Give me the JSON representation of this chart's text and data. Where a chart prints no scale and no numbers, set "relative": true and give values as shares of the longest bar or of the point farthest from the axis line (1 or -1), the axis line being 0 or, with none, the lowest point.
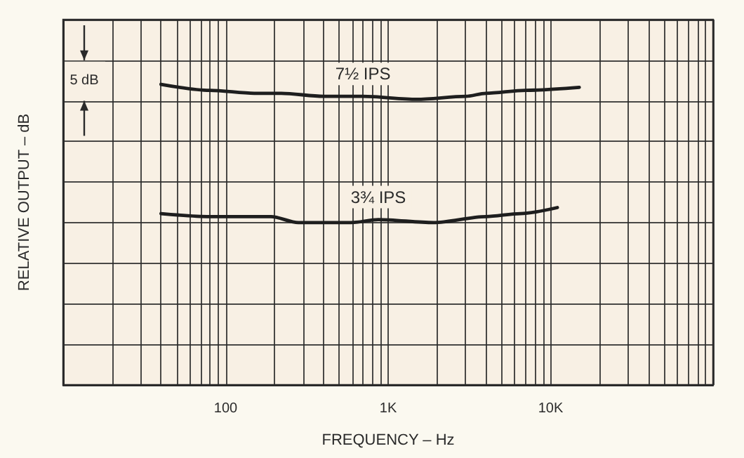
{
  "chart_data": {
    "type": "line",
    "relative": true,
    "xlabel": "FREQUENCY – Hz",
    "ylabel": "RELATIVE OUTPUT – dB",
    "log": "x",
    "grid": true,
    "legend": false,
    "tick_labels": "x",
    "marker": "none",
    "line_style": "solid",
    "xlim": [
      10,
      100000
    ],
    "xticks": [
      {
        "value": 10,
        "label": null
      },
      {
        "value": 20,
        "label": null
      },
      {
        "value": 30,
        "label": null
      },
      {
        "value": 40,
        "label": null
      },
      {
        "value": 50,
        "label": null
      },
      {
        "value": 60,
        "label": null
      },
      {
        "value": 70,
        "label": null
      },
      {
        "value": 80,
        "label": null
      },
      {
        "value": 90,
        "label": null
      },
      {
        "value": 100,
        "label": "100"
      },
      {
        "value": 200,
        "label": null
      },
      {
        "value": 300,
        "label": null
      },
      {
        "value": 400,
        "label": null
      },
      {
        "value": 500,
        "label": null
      },
      {
        "value": 600,
        "label": null
      },
      {
        "value": 700,
        "label": null
      },
      {
        "value": 800,
        "label": null
      },
      {
        "value": 900,
        "label": null
      },
      {
        "value": 1000,
        "label": "1K"
      },
      {
        "value": 2000,
        "label": null
      },
      {
        "value": 3000,
        "label": null
      },
      {
        "value": 4000,
        "label": null
      },
      {
        "value": 5000,
        "label": null
      },
      {
        "value": 6000,
        "label": null
      },
      {
        "value": 7000,
        "label": null
      },
      {
        "value": 8000,
        "label": null
      },
      {
        "value": 9000,
        "label": null
      },
      {
        "value": 10000,
        "label": "10K"
      },
      {
        "value": 20000,
        "label": null
      },
      {
        "value": 30000,
        "label": null
      },
      {
        "value": 40000,
        "label": null
      },
      {
        "value": 50000,
        "label": null
      },
      {
        "value": 60000,
        "label": null
      },
      {
        "value": 70000,
        "label": null
      },
      {
        "value": 80000,
        "label": null
      },
      {
        "value": 90000,
        "label": null
      },
      {
        "value": 100000,
        "label": null
      }
    ],
    "annotations": [
      "5 dB"
    ],
    "series": [
      {
        "name": "7½ IPS",
        "color": "#1e1e1e",
        "x": [
          40,
          80,
          150,
          220,
          400,
          700,
          1500,
          3000,
          4000,
          7000,
          15000
        ],
        "values": [
          1.0,
          0.98,
          0.97,
          0.97,
          0.96,
          0.96,
          0.95,
          0.96,
          0.97,
          0.98,
          0.99
        ]
      },
      {
        "name": "3¾ IPS",
        "color": "#1e1e1e",
        "x": [
          40,
          80,
          190,
          280,
          590,
          870,
          1900,
          4000,
          6500,
          11000
        ],
        "values": [
          0.57,
          0.56,
          0.56,
          0.54,
          0.54,
          0.55,
          0.54,
          0.56,
          0.57,
          0.59
        ]
      }
    ]
  }
}
